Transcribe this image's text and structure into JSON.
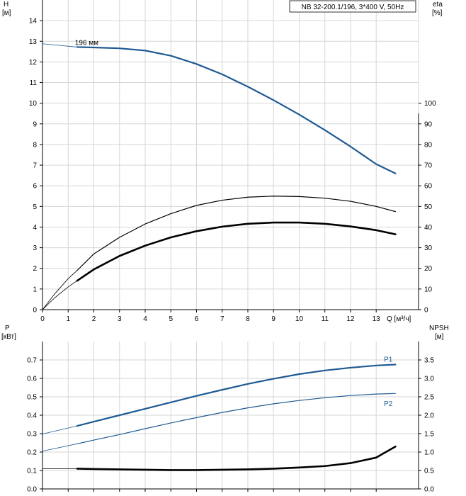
{
  "title": "NB 32-200.1/196, 3*400 V, 50Hz",
  "colors": {
    "blue": "#1f5a93",
    "black": "#000000",
    "grid": "#d6d6d6"
  },
  "chart_data": [
    {
      "type": "line",
      "panel": "top",
      "x_label": "Q [м³/ч]",
      "x_ticks": [
        0,
        1,
        2,
        3,
        4,
        5,
        6,
        7,
        8,
        9,
        10,
        11,
        12,
        13
      ],
      "xlim": [
        0,
        14.65
      ],
      "y_left": {
        "label_line1": "H",
        "label_line2": "[м]",
        "lim": [
          0,
          15
        ],
        "ticks": [
          0,
          1,
          2,
          3,
          4,
          5,
          6,
          7,
          8,
          9,
          10,
          11,
          12,
          13,
          14
        ]
      },
      "y_right": {
        "label_line1": "eta",
        "label_line2": "[%]",
        "lim": [
          0,
          150
        ],
        "ticks": [
          0,
          10,
          20,
          30,
          40,
          50,
          60,
          70,
          80,
          90,
          100
        ]
      },
      "grid": true,
      "series": [
        {
          "axis": "left",
          "color": "blue",
          "width": 2.2,
          "thin_until": 1.35,
          "points": [
            [
              0,
              12.88
            ],
            [
              1.35,
              12.72
            ],
            [
              2,
              12.7
            ],
            [
              3,
              12.66
            ],
            [
              4,
              12.55
            ],
            [
              5,
              12.3
            ],
            [
              6,
              11.9
            ],
            [
              7,
              11.4
            ],
            [
              8,
              10.8
            ],
            [
              9,
              10.15
            ],
            [
              10,
              9.45
            ],
            [
              11,
              8.7
            ],
            [
              12,
              7.9
            ],
            [
              13,
              7.05
            ],
            [
              13.75,
              6.6
            ]
          ]
        },
        {
          "axis": "right",
          "color": "black",
          "width": 1.2,
          "thin_until": 1.35,
          "points": [
            [
              0,
              0
            ],
            [
              0.5,
              8
            ],
            [
              1,
              15
            ],
            [
              1.35,
              19
            ],
            [
              2,
              27
            ],
            [
              3,
              35
            ],
            [
              4,
              41.5
            ],
            [
              5,
              46.5
            ],
            [
              6,
              50.5
            ],
            [
              7,
              53
            ],
            [
              8,
              54.5
            ],
            [
              9,
              55
            ],
            [
              10,
              54.8
            ],
            [
              11,
              54
            ],
            [
              12,
              52.5
            ],
            [
              13,
              50
            ],
            [
              13.75,
              47.5
            ]
          ]
        },
        {
          "axis": "right",
          "color": "black",
          "width": 2.6,
          "thin_until": 1.35,
          "points": [
            [
              0,
              0
            ],
            [
              0.5,
              6
            ],
            [
              1,
              11
            ],
            [
              1.35,
              14
            ],
            [
              2,
              19.5
            ],
            [
              3,
              26
            ],
            [
              4,
              31
            ],
            [
              5,
              35
            ],
            [
              6,
              38
            ],
            [
              7,
              40.2
            ],
            [
              8,
              41.6
            ],
            [
              9,
              42.2
            ],
            [
              10,
              42.2
            ],
            [
              11,
              41.6
            ],
            [
              12,
              40.3
            ],
            [
              13,
              38.5
            ],
            [
              13.75,
              36.5
            ]
          ]
        }
      ],
      "annotations": [
        {
          "text": "196 мм",
          "x": 1.65,
          "y": 12.72
        }
      ]
    },
    {
      "type": "line",
      "panel": "bottom",
      "xlim": [
        0,
        14.65
      ],
      "x_ticks": [
        0,
        1,
        2,
        3,
        4,
        5,
        6,
        7,
        8,
        9,
        10,
        11,
        12,
        13
      ],
      "y_left": {
        "label_line1": "P",
        "label_line2": "[кВт]",
        "lim": [
          0,
          0.8
        ],
        "ticks": [
          0.0,
          0.1,
          0.2,
          0.3,
          0.4,
          0.5,
          0.6,
          0.7
        ]
      },
      "y_right": {
        "label_line1": "NPSH",
        "label_line2": "[м]",
        "lim": [
          0,
          4.0
        ],
        "ticks": [
          0.0,
          0.5,
          1.0,
          1.5,
          2.0,
          2.5,
          3.0,
          3.5
        ]
      },
      "grid": true,
      "series": [
        {
          "name": "P1",
          "axis": "left",
          "color": "blue",
          "width": 2.2,
          "thin_until": 1.35,
          "points": [
            [
              0,
              0.298
            ],
            [
              1.35,
              0.342
            ],
            [
              2,
              0.365
            ],
            [
              3,
              0.4
            ],
            [
              4,
              0.435
            ],
            [
              5,
              0.47
            ],
            [
              6,
              0.505
            ],
            [
              7,
              0.538
            ],
            [
              8,
              0.57
            ],
            [
              9,
              0.598
            ],
            [
              10,
              0.623
            ],
            [
              11,
              0.643
            ],
            [
              12,
              0.658
            ],
            [
              13,
              0.67
            ],
            [
              13.75,
              0.675
            ]
          ]
        },
        {
          "name": "P2",
          "axis": "left",
          "color": "blue",
          "width": 1.2,
          "thin_until": 1.35,
          "points": [
            [
              0,
              0.205
            ],
            [
              1.35,
              0.245
            ],
            [
              2,
              0.265
            ],
            [
              3,
              0.295
            ],
            [
              4,
              0.327
            ],
            [
              5,
              0.358
            ],
            [
              6,
              0.387
            ],
            [
              7,
              0.415
            ],
            [
              8,
              0.44
            ],
            [
              9,
              0.462
            ],
            [
              10,
              0.48
            ],
            [
              11,
              0.495
            ],
            [
              12,
              0.507
            ],
            [
              13,
              0.515
            ],
            [
              13.75,
              0.518
            ]
          ]
        },
        {
          "axis": "right",
          "color": "black",
          "width": 2.6,
          "thin_until": 1.35,
          "points": [
            [
              0,
              0.55
            ],
            [
              1.35,
              0.55
            ],
            [
              2,
              0.54
            ],
            [
              3,
              0.53
            ],
            [
              4,
              0.52
            ],
            [
              5,
              0.51
            ],
            [
              6,
              0.51
            ],
            [
              7,
              0.52
            ],
            [
              8,
              0.53
            ],
            [
              9,
              0.55
            ],
            [
              10,
              0.58
            ],
            [
              11,
              0.62
            ],
            [
              12,
              0.7
            ],
            [
              13,
              0.85
            ],
            [
              13.75,
              1.15
            ]
          ]
        }
      ],
      "labels": [
        {
          "text": "P1",
          "x": 13.3,
          "y": 0.69
        },
        {
          "text": "P2",
          "x": 13.3,
          "y": 0.48
        }
      ]
    }
  ]
}
